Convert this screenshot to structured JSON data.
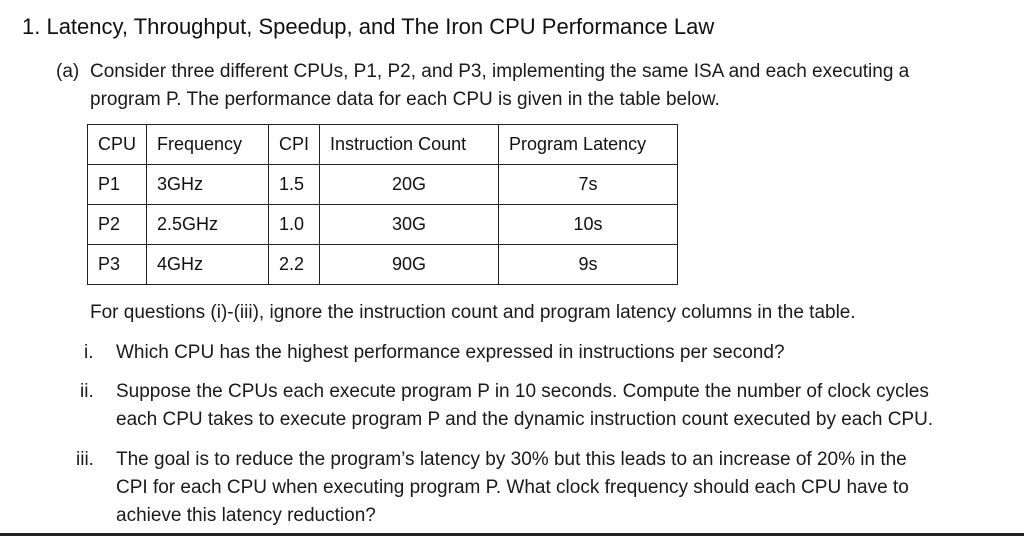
{
  "heading": "1.  Latency, Throughput, Speedup, and The Iron CPU Performance Law",
  "part_a": {
    "label": "(a)",
    "line1": "Consider three different CPUs, P1, P2, and P3, implementing the same ISA and each executing a",
    "line2": "program P.  The performance data for each CPU is given in the table below."
  },
  "table": {
    "headers": [
      "CPU",
      "Frequency",
      "CPI",
      "Instruction Count",
      "Program Latency"
    ],
    "rows": [
      [
        "P1",
        "3GHz",
        "1.5",
        "20G",
        "7s"
      ],
      [
        "P2",
        "2.5GHz",
        "1.0",
        "30G",
        "10s"
      ],
      [
        "P3",
        "4GHz",
        "2.2",
        "90G",
        "9s"
      ]
    ]
  },
  "note": "For questions (i)-(iii), ignore the instruction count and program latency columns in the table.",
  "questions": [
    {
      "num": "i.",
      "lines": [
        "Which CPU has the highest performance expressed in instructions per second?"
      ]
    },
    {
      "num": "ii.",
      "lines": [
        "Suppose the CPUs each execute program P in 10 seconds.  Compute the number of clock cycles",
        "each CPU takes to execute program P and the dynamic instruction count executed by each CPU."
      ]
    },
    {
      "num": "iii.",
      "lines": [
        "The goal is to reduce the program’s latency by 30% but this leads to an increase of 20% in the",
        "CPI for each CPU when executing program P.  What clock frequency should each CPU have to",
        "achieve this latency reduction?"
      ]
    }
  ]
}
